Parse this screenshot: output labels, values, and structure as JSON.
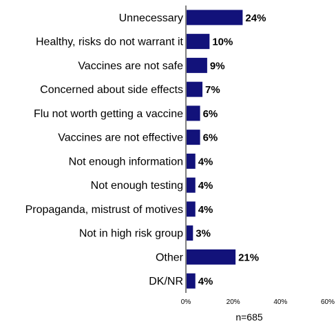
{
  "chart_data": {
    "type": "bar",
    "orientation": "horizontal",
    "categories": [
      "Unnecessary",
      "Healthy, risks do not warrant it",
      "Vaccines are not safe",
      "Concerned about side effects",
      "Flu not worth getting a vaccine",
      "Vaccines are not effective",
      "Not enough information",
      "Not enough testing",
      "Propaganda, mistrust of motives",
      "Not in high risk group",
      "Other",
      "DK/NR"
    ],
    "values": [
      24,
      10,
      9,
      7,
      6,
      6,
      4,
      4,
      4,
      3,
      21,
      4
    ],
    "data_labels": [
      "24%",
      "10%",
      "9%",
      "7%",
      "6%",
      "6%",
      "4%",
      "4%",
      "4%",
      "3%",
      "21%",
      "4%"
    ],
    "xlim": [
      0,
      60
    ],
    "x_ticks": [
      0,
      20,
      40,
      60
    ],
    "x_tick_labels": [
      "0%",
      "20%",
      "40%",
      "60%"
    ],
    "note": "n=685",
    "bar_color": "#12127a",
    "grid": false
  }
}
